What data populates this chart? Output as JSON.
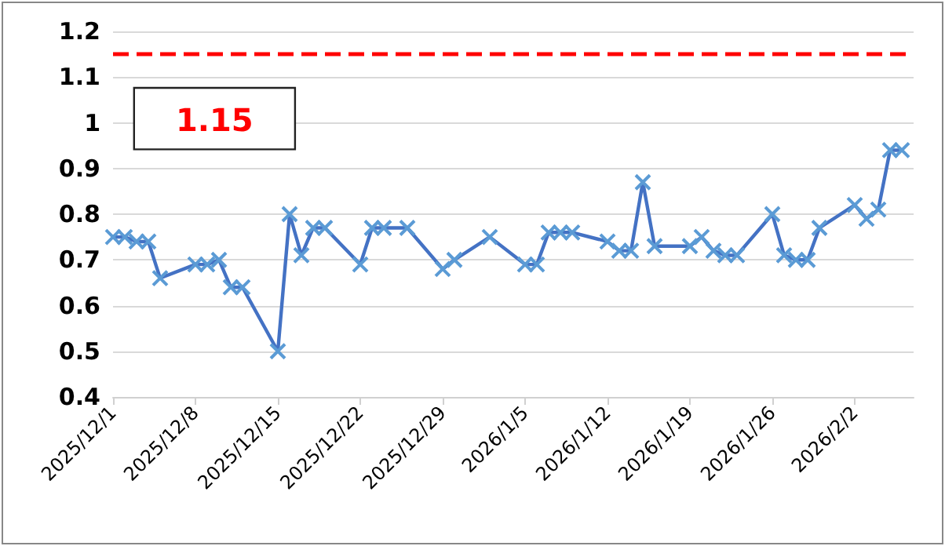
{
  "chart_data": {
    "type": "line",
    "x": [
      "2025-12-01",
      "2025-12-02",
      "2025-12-03",
      "2025-12-04",
      "2025-12-05",
      "2025-12-08",
      "2025-12-09",
      "2025-12-10",
      "2025-12-11",
      "2025-12-12",
      "2025-12-15",
      "2025-12-16",
      "2025-12-17",
      "2025-12-18",
      "2025-12-19",
      "2025-12-22",
      "2025-12-23",
      "2025-12-24",
      "2025-12-26",
      "2025-12-29",
      "2025-12-30",
      "2026-01-02",
      "2026-01-05",
      "2026-01-06",
      "2026-01-07",
      "2026-01-08",
      "2026-01-09",
      "2026-01-12",
      "2026-01-13",
      "2026-01-14",
      "2026-01-15",
      "2026-01-16",
      "2026-01-19",
      "2026-01-20",
      "2026-01-21",
      "2026-01-22",
      "2026-01-23",
      "2026-01-26",
      "2026-01-27",
      "2026-01-28",
      "2026-01-29",
      "2026-01-30",
      "2026-02-02",
      "2026-02-03",
      "2026-02-04",
      "2026-02-05",
      "2026-02-06"
    ],
    "series": [
      {
        "color": "#4472c4",
        "values": [
          0.75,
          0.75,
          0.74,
          0.74,
          0.66,
          0.69,
          0.69,
          0.7,
          0.64,
          0.64,
          0.5,
          0.8,
          0.71,
          0.77,
          0.77,
          0.69,
          0.77,
          0.77,
          0.77,
          0.68,
          0.7,
          0.75,
          0.69,
          0.69,
          0.76,
          0.76,
          0.76,
          0.74,
          0.72,
          0.72,
          0.87,
          0.73,
          0.73,
          0.75,
          0.72,
          0.71,
          0.71,
          0.8,
          0.71,
          0.7,
          0.7,
          0.77,
          0.82,
          0.79,
          0.81,
          0.94,
          0.94
        ]
      }
    ],
    "xlim": [
      "2025-12-01",
      "2026-02-07"
    ],
    "xticks": [
      {
        "value": "2025-12-01",
        "label": "2025/12/1"
      },
      {
        "value": "2025-12-08",
        "label": "2025/12/8"
      },
      {
        "value": "2025-12-15",
        "label": "2025/12/15"
      },
      {
        "value": "2025-12-22",
        "label": "2025/12/22"
      },
      {
        "value": "2025-12-29",
        "label": "2025/12/29"
      },
      {
        "value": "2026-01-05",
        "label": "2026/1/5"
      },
      {
        "value": "2026-01-12",
        "label": "2026/1/12"
      },
      {
        "value": "2026-01-19",
        "label": "2026/1/19"
      },
      {
        "value": "2026-01-26",
        "label": "2026/1/26"
      },
      {
        "value": "2026-02-02",
        "label": "2026/2/2"
      }
    ],
    "ylim": [
      0.4,
      1.2
    ],
    "yticks": [
      0.4,
      0.5,
      0.6,
      0.7,
      0.8,
      0.9,
      1,
      1.1,
      1.2
    ],
    "ref_lines": [
      {
        "axis": "y",
        "value": 1.15,
        "label": "1.15",
        "color": "#ff0000",
        "line_style": "dashed"
      }
    ],
    "grid": "y",
    "marker": "cross",
    "line_style": "solid"
  }
}
